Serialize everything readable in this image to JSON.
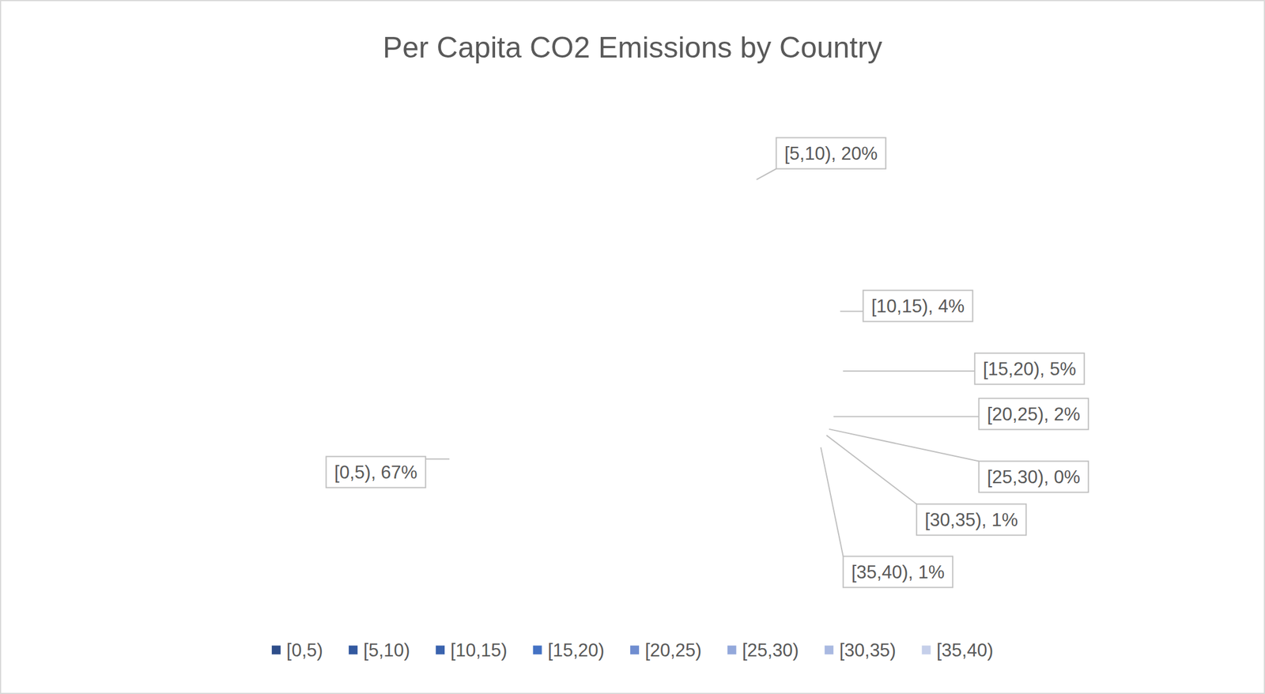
{
  "chart_data": {
    "type": "pie",
    "title": "Per Capita CO2 Emissions by Country",
    "categories": [
      "[0,5)",
      "[5,10)",
      "[10,15)",
      "[15,20)",
      "[20,25)",
      "[25,30)",
      "[30,35)",
      "[35,40)"
    ],
    "values": [
      67,
      20,
      4,
      5,
      2,
      0,
      1,
      1
    ],
    "value_labels": [
      "67%",
      "20%",
      "4%",
      "5%",
      "2%",
      "0%",
      "1%",
      "1%"
    ],
    "colors": [
      "#2e4e8a",
      "#3359a0",
      "#3a63ae",
      "#4472c4",
      "#6f8dd0",
      "#93a8db",
      "#a9b9e1",
      "#c5cfea"
    ],
    "data_labels": true,
    "legend": "bottom"
  }
}
